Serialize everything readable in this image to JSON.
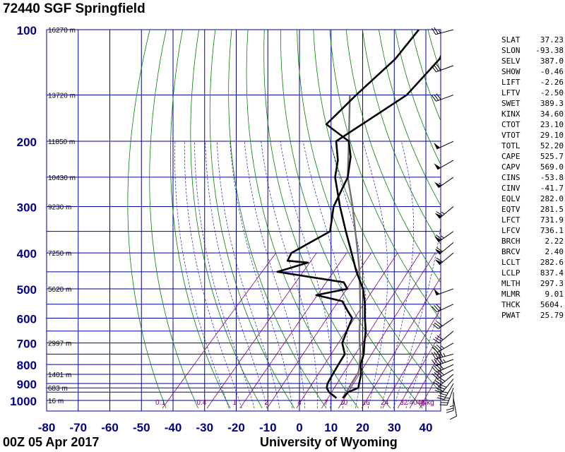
{
  "header": {
    "title": "72440 SGF Springfield"
  },
  "footer": {
    "left": "00Z 05 Apr 2017",
    "right": "University of Wyoming"
  },
  "colors": {
    "grid": "#0000a0",
    "dry_adiabat": "#008000",
    "moist_adiabat": "#2020b0",
    "mixing_ratio": "#800080",
    "pressure_label": "#000080",
    "profile": "#000000",
    "parcel": "#707070"
  },
  "chart_data": {
    "type": "line",
    "title": "72440 SGF Springfield",
    "pressure_ticks": [
      100,
      200,
      300,
      400,
      500,
      600,
      700,
      800,
      900,
      1000
    ],
    "pressure_tick_labels": [
      "100",
      "200",
      "300",
      "400",
      "500",
      "600",
      "700",
      "800",
      "900",
      "1000"
    ],
    "extra_isobars": [
      150,
      250,
      350,
      450,
      550,
      650,
      750,
      850,
      925,
      950
    ],
    "temperature_ticks": [
      -80,
      -70,
      -60,
      -50,
      -40,
      -30,
      -20,
      -10,
      0,
      10,
      20,
      30,
      40
    ],
    "temperature_tick_labels": [
      "-80",
      "-70",
      "-60",
      "-50",
      "-40",
      "-30",
      "-20",
      "-10",
      "0",
      "10",
      "20",
      "30",
      "40"
    ],
    "xlim": [
      -80,
      45
    ],
    "plim": [
      1050,
      100
    ],
    "height_labels": [
      {
        "p": 100,
        "text": "16270 m"
      },
      {
        "p": 150,
        "text": "13720 m"
      },
      {
        "p": 200,
        "text": "11850 m"
      },
      {
        "p": 250,
        "text": "10430 m"
      },
      {
        "p": 300,
        "text": "9230 m"
      },
      {
        "p": 400,
        "text": "7250 m"
      },
      {
        "p": 500,
        "text": "5620 m"
      },
      {
        "p": 700,
        "text": "2997 m"
      },
      {
        "p": 850,
        "text": "1401 m"
      },
      {
        "p": 925,
        "text": "683 m"
      },
      {
        "p": 1000,
        "text": "16 m"
      }
    ],
    "mixing_ratio_values": [
      0.1,
      0.4,
      1,
      2,
      4,
      7,
      10,
      16,
      24,
      32,
      40,
      48
    ],
    "mixing_ratio_labels": [
      {
        "x": -44,
        "text": "0.1"
      },
      {
        "x": -31,
        "text": "0.4"
      },
      {
        "x": -20.5,
        "text": "1"
      },
      {
        "x": -10.5,
        "text": "2"
      },
      {
        "x": 0,
        "text": "4"
      },
      {
        "x": 8.5,
        "text": "7"
      },
      {
        "x": 14,
        "text": "10"
      },
      {
        "x": 21,
        "text": "16"
      },
      {
        "x": 27,
        "text": "24"
      },
      {
        "x": 33,
        "text": "32"
      },
      {
        "x": 36,
        "text": "40"
      },
      {
        "x": 38.5,
        "text": "48"
      },
      {
        "x": 40.5,
        "text": "g/kg"
      }
    ],
    "series": [
      {
        "key": "temperature",
        "points": [
          [
            985,
            13
          ],
          [
            950,
            13
          ],
          [
            925,
            15
          ],
          [
            900,
            14
          ],
          [
            850,
            12
          ],
          [
            800,
            9
          ],
          [
            750,
            7
          ],
          [
            700,
            4
          ],
          [
            650,
            1
          ],
          [
            600,
            -3
          ],
          [
            550,
            -7
          ],
          [
            500,
            -12
          ],
          [
            450,
            -19
          ],
          [
            400,
            -26
          ],
          [
            350,
            -34
          ],
          [
            300,
            -43
          ],
          [
            250,
            -53
          ],
          [
            225,
            -57
          ],
          [
            200,
            -63
          ],
          [
            150,
            -54
          ],
          [
            120,
            -54
          ],
          [
            100,
            -58
          ]
        ]
      },
      {
        "key": "dewpoint",
        "points": [
          [
            985,
            11
          ],
          [
            950,
            7
          ],
          [
            925,
            5
          ],
          [
            900,
            4
          ],
          [
            850,
            3
          ],
          [
            800,
            2
          ],
          [
            750,
            1
          ],
          [
            700,
            -3
          ],
          [
            650,
            -5
          ],
          [
            600,
            -7
          ],
          [
            570,
            -11
          ],
          [
            540,
            -15
          ],
          [
            520,
            -25
          ],
          [
            500,
            -17
          ],
          [
            480,
            -20
          ],
          [
            450,
            -44
          ],
          [
            425,
            -37
          ],
          [
            420,
            -44
          ],
          [
            400,
            -45
          ],
          [
            350,
            -39
          ],
          [
            300,
            -45
          ],
          [
            250,
            -49
          ],
          [
            220,
            -54
          ],
          [
            200,
            -59
          ],
          [
            180,
            -71
          ],
          [
            150,
            -70
          ],
          [
            120,
            -68
          ],
          [
            100,
            -69
          ]
        ]
      },
      {
        "key": "parcel",
        "points": [
          [
            985,
            13
          ],
          [
            837,
            10.5
          ],
          [
            750,
            6
          ],
          [
            700,
            2.5
          ],
          [
            650,
            -1
          ],
          [
            600,
            -4.5
          ],
          [
            550,
            -8.5
          ],
          [
            500,
            -13
          ],
          [
            450,
            -18
          ],
          [
            400,
            -24
          ],
          [
            350,
            -31
          ],
          [
            300,
            -39
          ],
          [
            250,
            -49
          ],
          [
            200,
            -59
          ],
          [
            150,
            -72
          ]
        ]
      }
    ],
    "wind_barbs": [
      {
        "p": 985,
        "dir": 170,
        "spd": 10
      },
      {
        "p": 950,
        "dir": 180,
        "spd": 25
      },
      {
        "p": 925,
        "dir": 200,
        "spd": 35
      },
      {
        "p": 900,
        "dir": 210,
        "spd": 40
      },
      {
        "p": 875,
        "dir": 220,
        "spd": 40
      },
      {
        "p": 850,
        "dir": 230,
        "spd": 40
      },
      {
        "p": 825,
        "dir": 240,
        "spd": 40
      },
      {
        "p": 800,
        "dir": 245,
        "spd": 40
      },
      {
        "p": 775,
        "dir": 250,
        "spd": 45
      },
      {
        "p": 750,
        "dir": 255,
        "spd": 45
      },
      {
        "p": 700,
        "dir": 240,
        "spd": 35
      },
      {
        "p": 650,
        "dir": 230,
        "spd": 30
      },
      {
        "p": 600,
        "dir": 235,
        "spd": 30
      },
      {
        "p": 550,
        "dir": 245,
        "spd": 30
      },
      {
        "p": 500,
        "dir": 250,
        "spd": 50
      },
      {
        "p": 400,
        "dir": 230,
        "spd": 60
      },
      {
        "p": 375,
        "dir": 230,
        "spd": 60
      },
      {
        "p": 350,
        "dir": 235,
        "spd": 65
      },
      {
        "p": 300,
        "dir": 230,
        "spd": 65
      },
      {
        "p": 250,
        "dir": 235,
        "spd": 55
      },
      {
        "p": 225,
        "dir": 240,
        "spd": 50
      },
      {
        "p": 200,
        "dir": 245,
        "spd": 50
      },
      {
        "p": 150,
        "dir": 250,
        "spd": 30
      },
      {
        "p": 125,
        "dir": 250,
        "spd": 30
      },
      {
        "p": 100,
        "dir": 255,
        "spd": 25
      }
    ]
  },
  "indices": [
    {
      "name": "SLAT",
      "value": "37.23"
    },
    {
      "name": "SLON",
      "value": "-93.38"
    },
    {
      "name": "SELV",
      "value": "387.0"
    },
    {
      "name": "SHOW",
      "value": "-0.46"
    },
    {
      "name": "LIFT",
      "value": "-2.26"
    },
    {
      "name": "LFTV",
      "value": "-2.50"
    },
    {
      "name": "SWET",
      "value": "389.3"
    },
    {
      "name": "KINX",
      "value": "34.60"
    },
    {
      "name": "CTOT",
      "value": "23.10"
    },
    {
      "name": "VTOT",
      "value": "29.10"
    },
    {
      "name": "TOTL",
      "value": "52.20"
    },
    {
      "name": "CAPE",
      "value": "525.7"
    },
    {
      "name": "CAPV",
      "value": "569.0"
    },
    {
      "name": "CINS",
      "value": "-53.8"
    },
    {
      "name": "CINV",
      "value": "-41.7"
    },
    {
      "name": "EQLV",
      "value": "282.0"
    },
    {
      "name": "EQTV",
      "value": "281.5"
    },
    {
      "name": "LFCT",
      "value": "731.9"
    },
    {
      "name": "LFCV",
      "value": "736.1"
    },
    {
      "name": "BRCH",
      "value": "2.22"
    },
    {
      "name": "BRCV",
      "value": "2.40"
    },
    {
      "name": "LCLT",
      "value": "282.6"
    },
    {
      "name": "LCLP",
      "value": "837.4"
    },
    {
      "name": "MLTH",
      "value": "297.3"
    },
    {
      "name": "MLMR",
      "value": "9.01"
    },
    {
      "name": "THCK",
      "value": "5604."
    },
    {
      "name": "PWAT",
      "value": "25.79"
    }
  ]
}
